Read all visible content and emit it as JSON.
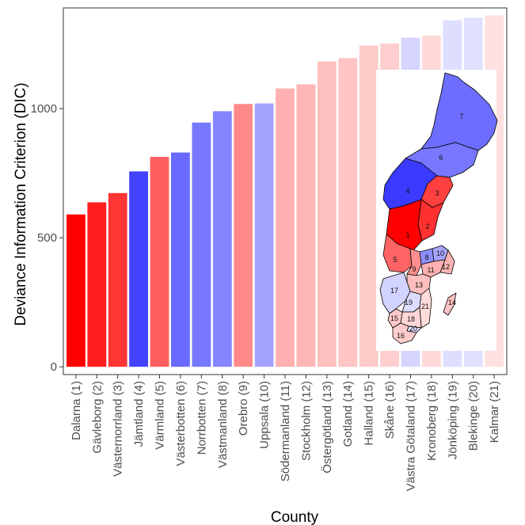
{
  "chart_data": {
    "type": "bar",
    "xlabel": "County",
    "ylabel": "Deviance Information Criterion (DIC)",
    "ylim": [
      -30,
      1390
    ],
    "yticks": [
      0,
      500,
      1000
    ],
    "grid": false,
    "categories": [
      "Dalarna (1)",
      "Gävleborg (2)",
      "Västernorrland (3)",
      "Jämtland (4)",
      "Värmland (5)",
      "Västerbotten (6)",
      "Norrbotten (7)",
      "Västmanland (8)",
      "Orebro (9)",
      "Uppsala (10)",
      "Södermanland (11)",
      "Stockholm (12)",
      "Östergötland (13)",
      "Gotland (14)",
      "Halland (15)",
      "Skåne (16)",
      "Västra Götaland (17)",
      "Kronoberg (18)",
      "Jönköping (19)",
      "Blekinge (20)",
      "Kalmar (21)"
    ],
    "values": [
      590,
      637,
      673,
      757,
      813,
      830,
      946,
      990,
      1018,
      1020,
      1078,
      1094,
      1183,
      1196,
      1244,
      1252,
      1275,
      1283,
      1342,
      1352,
      1361
    ],
    "colors": [
      "#ff0000",
      "#ff1e1e",
      "#ff3535",
      "#4343ff",
      "#ff5e5e",
      "#6a6aff",
      "#7878ff",
      "#8585ff",
      "#ff8989",
      "#a3a3ff",
      "#ffb1b1",
      "#ffb6b6",
      "#ffc0c0",
      "#ffc4c4",
      "#ffcaca",
      "#ffcece",
      "#d5d5ff",
      "#ffd8d8",
      "#dedeff",
      "#e0e0ff",
      "#ffe0e0"
    ]
  },
  "inset_map": {
    "regions": [
      {
        "id": "7",
        "color": "#6d6dff"
      },
      {
        "id": "6",
        "color": "#7777ff"
      },
      {
        "id": "4",
        "color": "#3b3bff"
      },
      {
        "id": "3",
        "color": "#ff4040"
      },
      {
        "id": "2",
        "color": "#ff3030"
      },
      {
        "id": "1",
        "color": "#ff0000"
      },
      {
        "id": "5",
        "color": "#ff6464"
      },
      {
        "id": "8",
        "color": "#8e8eff"
      },
      {
        "id": "10",
        "color": "#a5a5ff"
      },
      {
        "id": "9",
        "color": "#ff8e8e"
      },
      {
        "id": "12",
        "color": "#ffb4b4"
      },
      {
        "id": "11",
        "color": "#ffb0b0"
      },
      {
        "id": "13",
        "color": "#ffbebe"
      },
      {
        "id": "17",
        "color": "#d3d3ff"
      },
      {
        "id": "19",
        "color": "#dcdcff"
      },
      {
        "id": "21",
        "color": "#ffdcdc"
      },
      {
        "id": "18",
        "color": "#ffd6d6"
      },
      {
        "id": "15",
        "color": "#ffc8c8"
      },
      {
        "id": "20",
        "color": "#dfdfff"
      },
      {
        "id": "16",
        "color": "#ffcccc"
      },
      {
        "id": "14",
        "color": "#ffc2c2"
      }
    ]
  }
}
